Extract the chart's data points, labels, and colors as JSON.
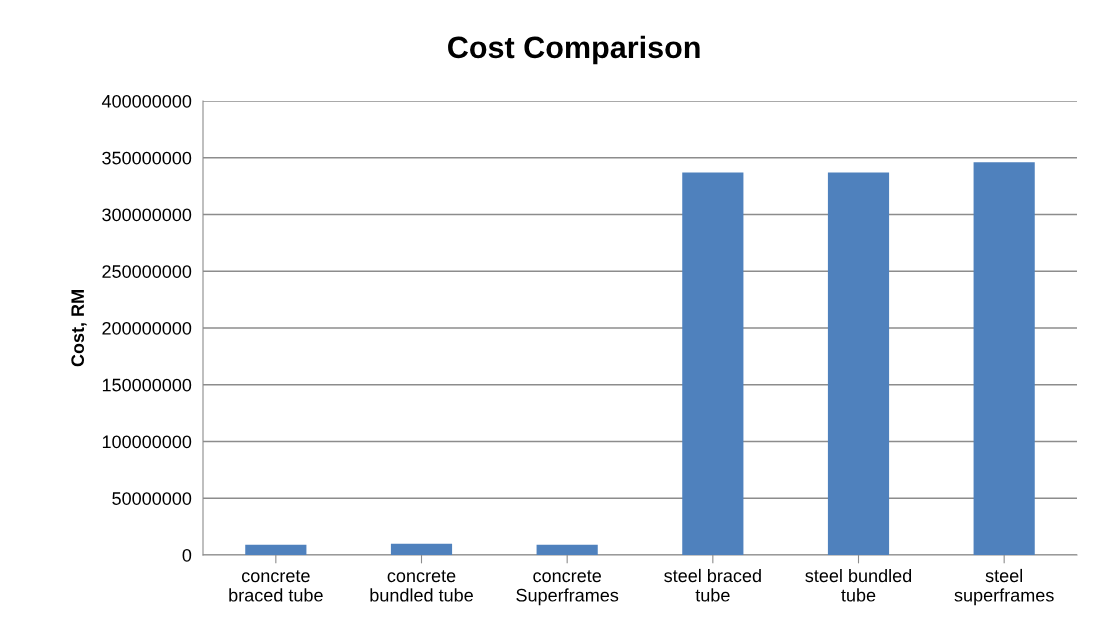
{
  "chart_data": {
    "type": "bar",
    "title": "Cost Comparison",
    "ylabel": "Cost, RM",
    "categories": [
      "concrete\nbraced tube",
      "concrete\nbundled tube",
      "concrete\nSuperframes",
      "steel braced\ntube",
      "steel bundled\ntube",
      "steel\nsuperframes"
    ],
    "values": [
      9000000,
      10000000,
      9000000,
      337000000,
      337000000,
      346000000
    ],
    "color": "#4f81bd",
    "ylim": [
      0,
      400000000
    ],
    "yticks": [
      0,
      50000000,
      100000000,
      150000000,
      200000000,
      250000000,
      300000000,
      350000000,
      400000000
    ],
    "grid": "y",
    "legend": false
  }
}
